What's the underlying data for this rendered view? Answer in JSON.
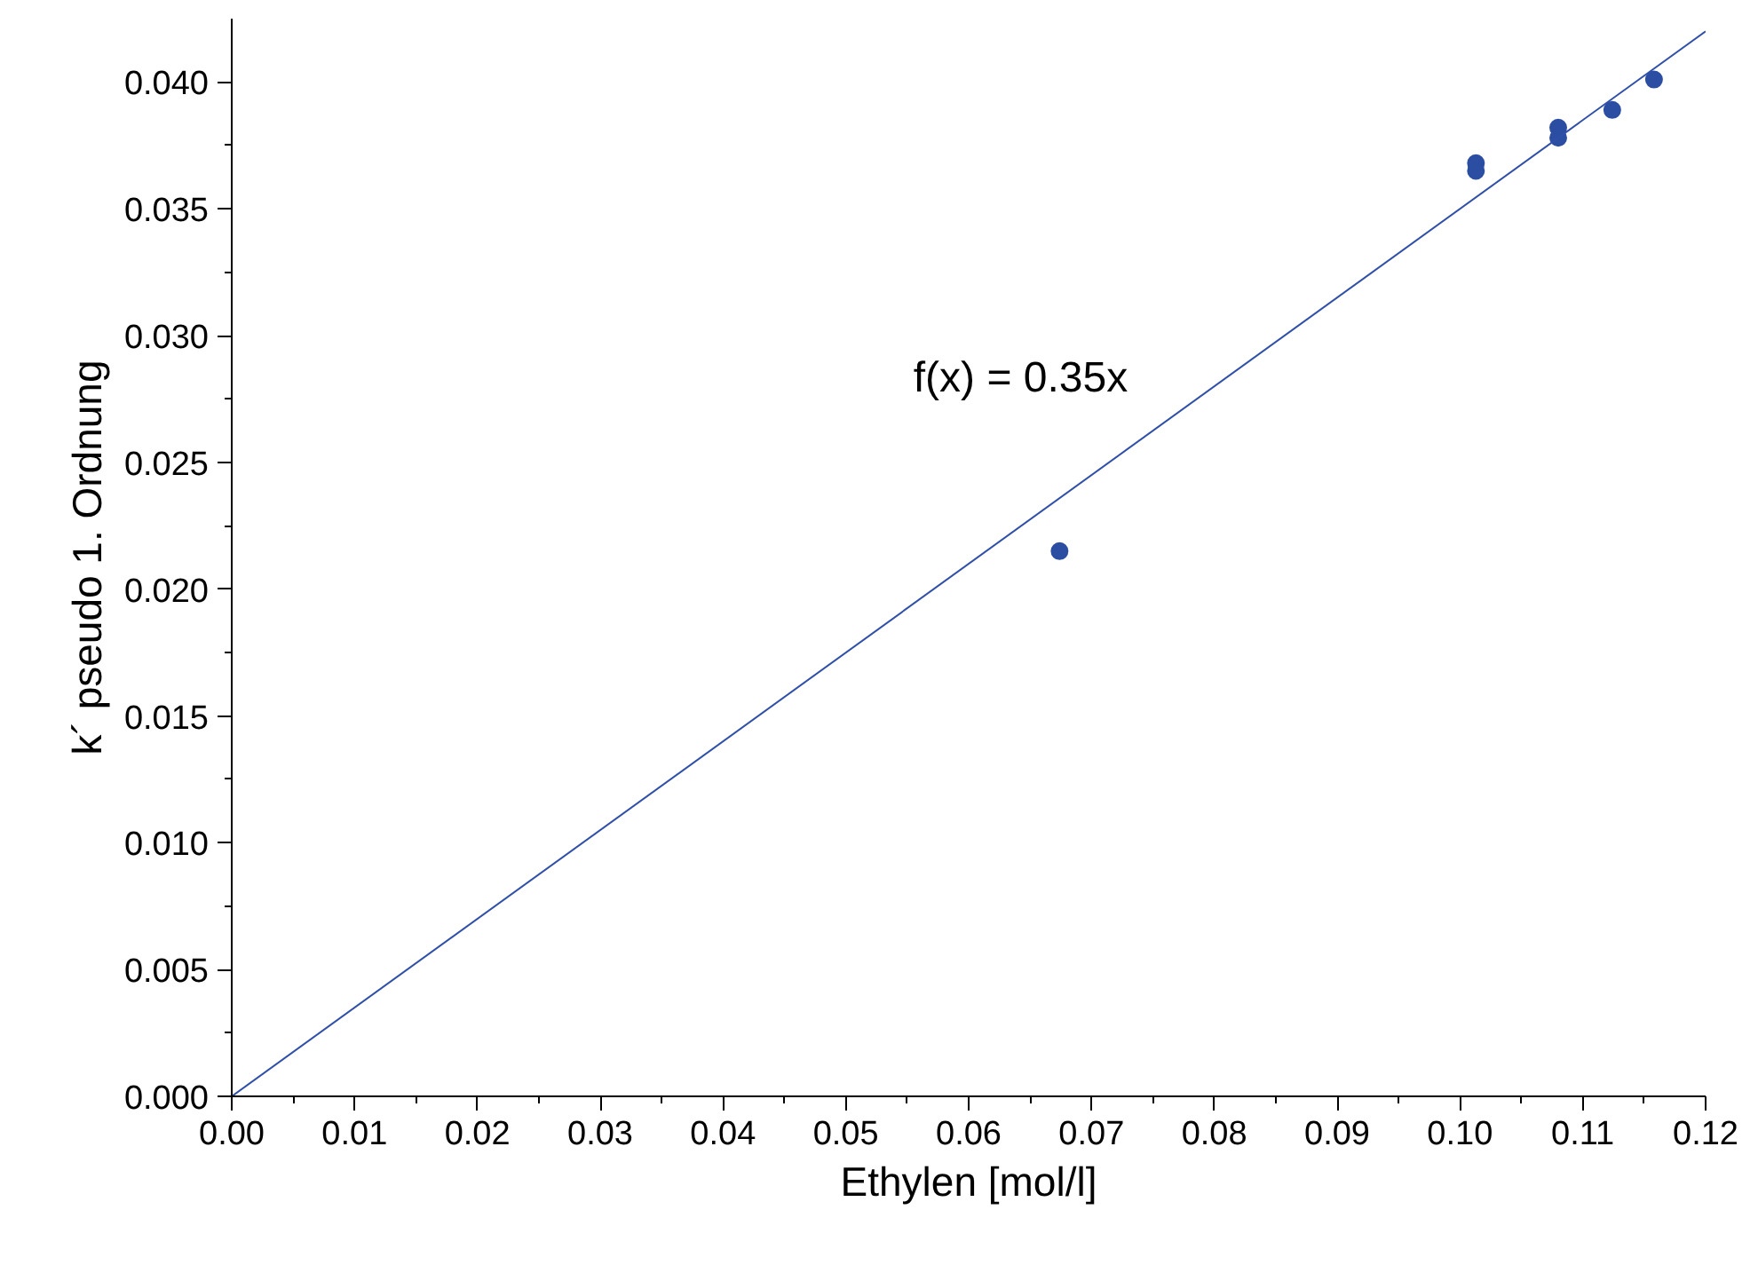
{
  "chart_data": {
    "type": "scatter",
    "xlabel": "Ethylen [mol/l]",
    "ylabel": "k´ pseudo 1. Ordnung",
    "xlim": [
      0,
      0.12
    ],
    "ylim": [
      0,
      0.0425
    ],
    "xticks": [
      {
        "value": 0,
        "label": "0.00"
      },
      {
        "value": 0.005,
        "label": null
      },
      {
        "value": 0.01,
        "label": "0.01"
      },
      {
        "value": 0.015,
        "label": null
      },
      {
        "value": 0.02,
        "label": "0.02"
      },
      {
        "value": 0.025,
        "label": null
      },
      {
        "value": 0.03,
        "label": "0.03"
      },
      {
        "value": 0.035,
        "label": null
      },
      {
        "value": 0.04,
        "label": "0.04"
      },
      {
        "value": 0.045,
        "label": null
      },
      {
        "value": 0.05,
        "label": "0.05"
      },
      {
        "value": 0.055,
        "label": null
      },
      {
        "value": 0.06,
        "label": "0.06"
      },
      {
        "value": 0.065,
        "label": null
      },
      {
        "value": 0.07,
        "label": "0.07"
      },
      {
        "value": 0.075,
        "label": null
      },
      {
        "value": 0.08,
        "label": "0.08"
      },
      {
        "value": 0.085,
        "label": null
      },
      {
        "value": 0.09,
        "label": "0.09"
      },
      {
        "value": 0.095,
        "label": null
      },
      {
        "value": 0.1,
        "label": "0.10"
      },
      {
        "value": 0.105,
        "label": null
      },
      {
        "value": 0.11,
        "label": "0.11"
      },
      {
        "value": 0.115,
        "label": null
      },
      {
        "value": 0.12,
        "label": "0.12"
      }
    ],
    "yticks": [
      {
        "value": 0,
        "label": "0.000"
      },
      {
        "value": 0.0025,
        "label": null
      },
      {
        "value": 0.005,
        "label": "0.005"
      },
      {
        "value": 0.0075,
        "label": null
      },
      {
        "value": 0.01,
        "label": "0.010"
      },
      {
        "value": 0.0125,
        "label": null
      },
      {
        "value": 0.015,
        "label": "0.015"
      },
      {
        "value": 0.0175,
        "label": null
      },
      {
        "value": 0.02,
        "label": "0.020"
      },
      {
        "value": 0.0225,
        "label": null
      },
      {
        "value": 0.025,
        "label": "0.025"
      },
      {
        "value": 0.0275,
        "label": null
      },
      {
        "value": 0.03,
        "label": "0.030"
      },
      {
        "value": 0.0325,
        "label": null
      },
      {
        "value": 0.035,
        "label": "0.035"
      },
      {
        "value": 0.0375,
        "label": null
      },
      {
        "value": 0.04,
        "label": "0.040"
      }
    ],
    "grid": false,
    "series": [
      {
        "color": "#2b4ea2",
        "marker": "circle",
        "x": [
          0.0674,
          0.1013,
          0.1013,
          0.108,
          0.108,
          0.1124,
          0.1158
        ],
        "values": [
          0.0215,
          0.0368,
          0.0365,
          0.0382,
          0.0378,
          0.0389,
          0.0401
        ]
      },
      {
        "type": "line",
        "color": "#2f4fa8",
        "line_style": "solid",
        "x": [
          0,
          0.12
        ],
        "values": [
          0,
          0.042
        ]
      }
    ],
    "annotations": [
      "f(x) = 0.35x"
    ]
  }
}
